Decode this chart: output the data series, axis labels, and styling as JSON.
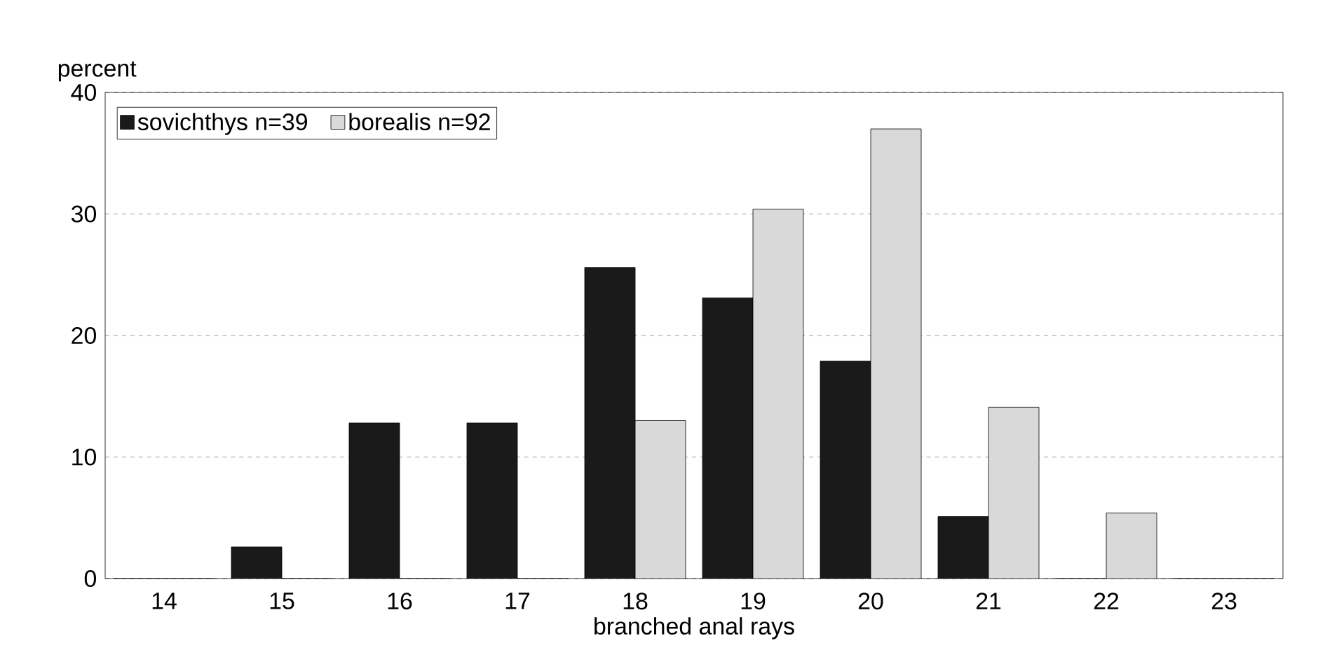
{
  "chart_data": {
    "type": "bar",
    "xlabel": "branched anal rays",
    "ylabel": "percent",
    "categories": [
      "14",
      "15",
      "16",
      "17",
      "18",
      "19",
      "20",
      "21",
      "22",
      "23"
    ],
    "series": [
      {
        "name": "sovichthys n=39",
        "color": "#1a1a1a",
        "values": [
          0,
          2.6,
          12.8,
          12.8,
          25.6,
          23.1,
          17.9,
          5.1,
          0,
          0
        ]
      },
      {
        "name": "borealis n=92",
        "color": "#d9d9d9",
        "values": [
          0,
          0,
          0,
          0,
          13.0,
          30.4,
          37.0,
          14.1,
          5.4,
          0
        ]
      }
    ],
    "ylim": [
      0,
      40
    ],
    "yticks": [
      0,
      10,
      20,
      30,
      40
    ],
    "grid": "y",
    "legend": "top left"
  }
}
